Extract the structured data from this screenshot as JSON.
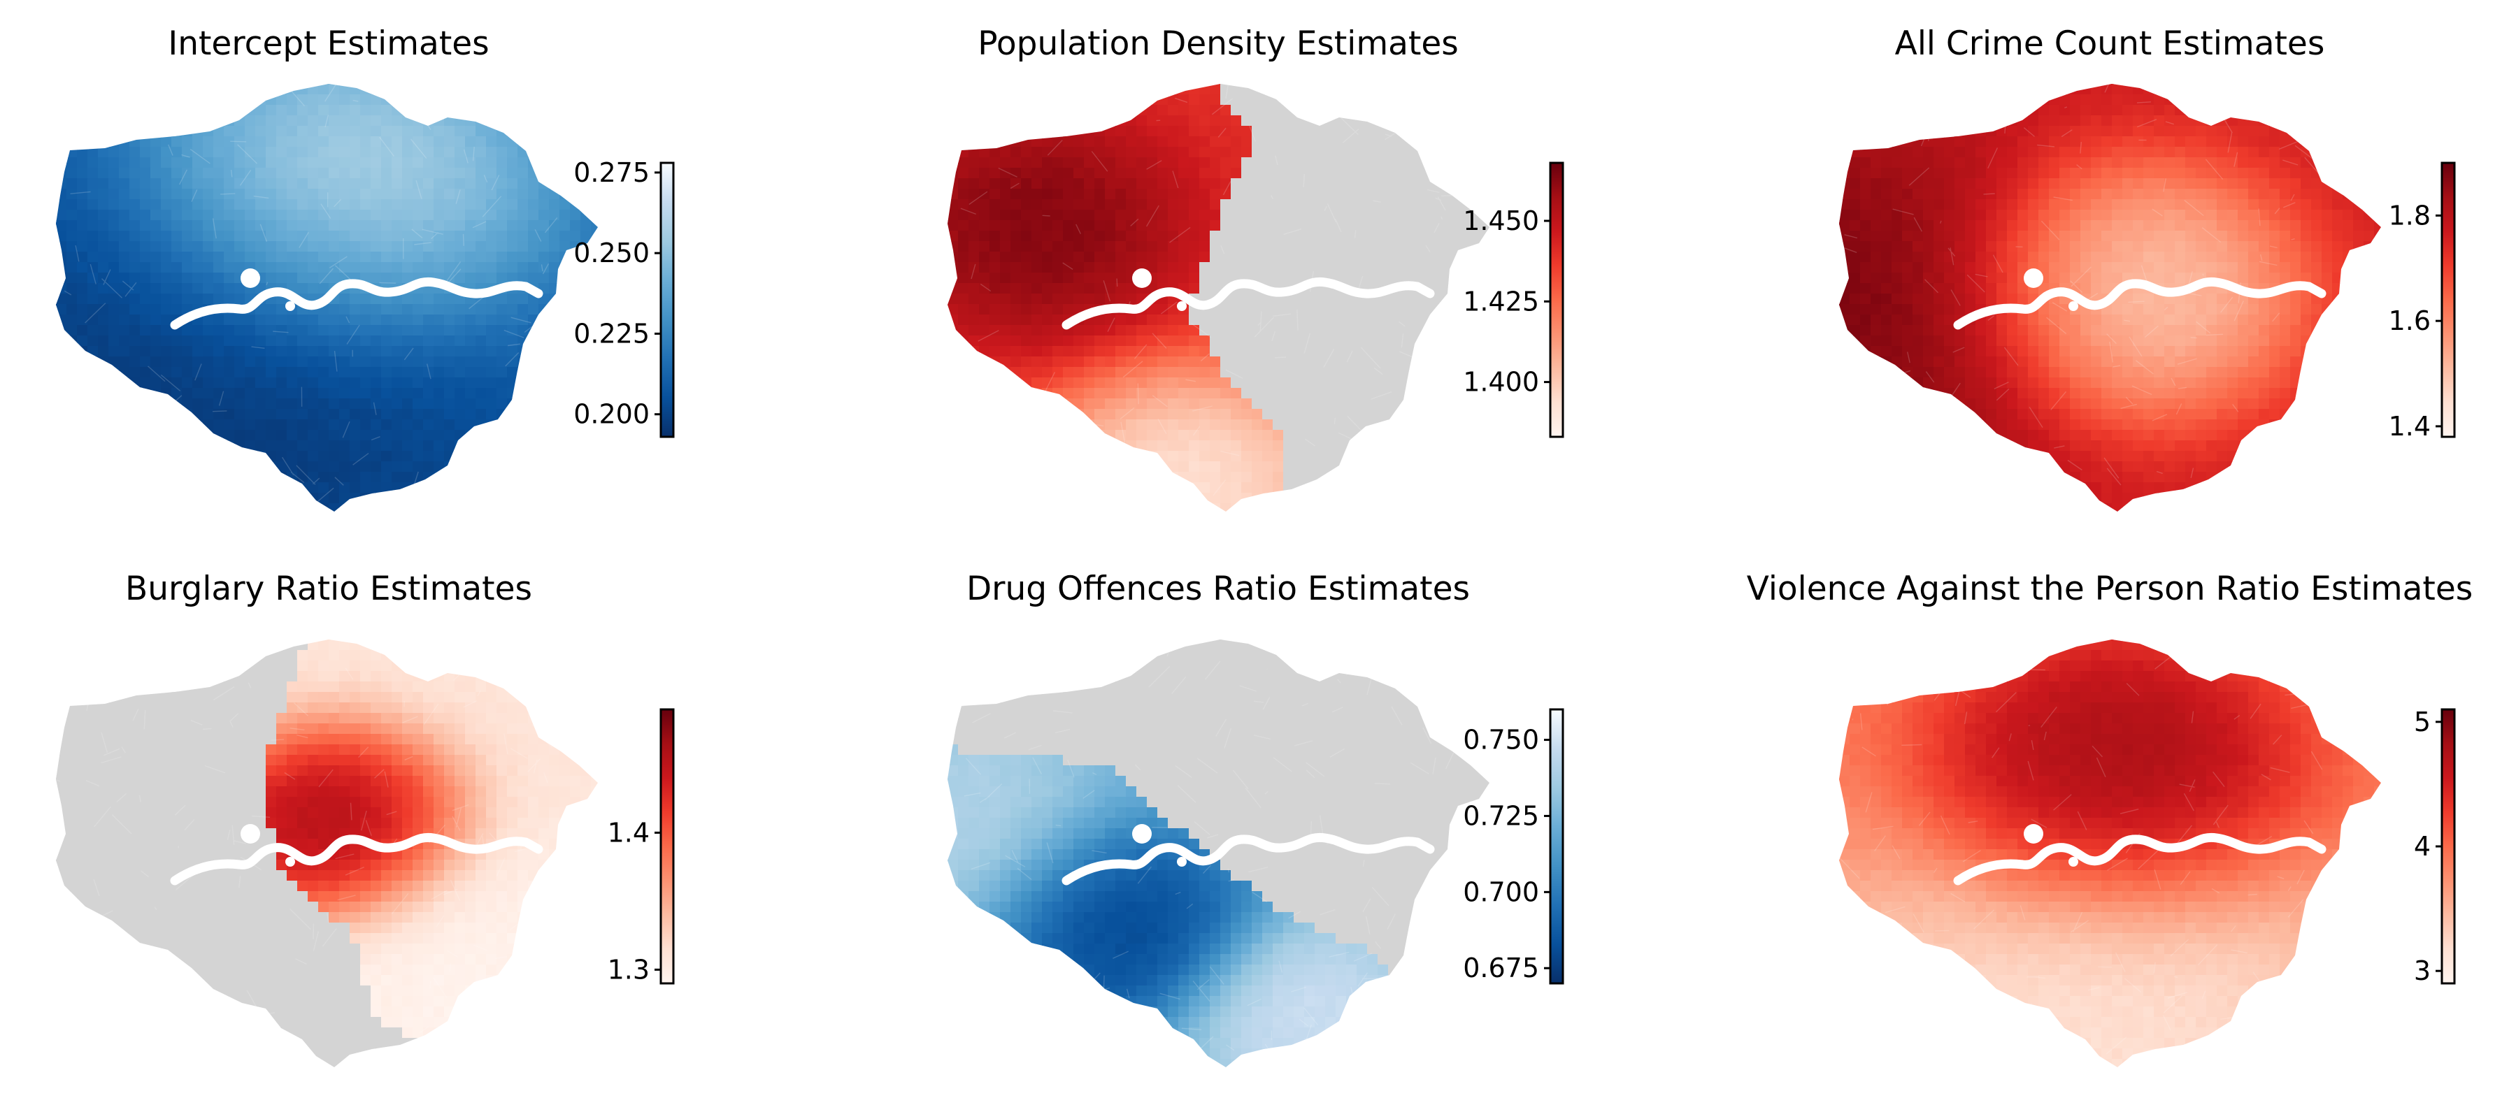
{
  "colormaps": {
    "Blues_r": [
      "#08306b",
      "#08519c",
      "#2171b5",
      "#4292c6",
      "#6baed6",
      "#9ecae1",
      "#c6dbef",
      "#f7fbff"
    ],
    "Reds": [
      "#fff5f0",
      "#fee0d2",
      "#fcbba1",
      "#fc9272",
      "#fb6a4a",
      "#ef3b2c",
      "#cb181d",
      "#a50f15",
      "#67000d"
    ]
  },
  "insignificant_color": "#d4d4d4",
  "panels": [
    {
      "id": "intercept",
      "title": "Intercept Estimates",
      "colormap": "Blues_r",
      "range": [
        0.193,
        0.278
      ],
      "ticks": [
        {
          "value": 0.2,
          "label": "0.200"
        },
        {
          "value": 0.225,
          "label": "0.225"
        },
        {
          "value": 0.25,
          "label": "0.250"
        },
        {
          "value": 0.275,
          "label": "0.275"
        }
      ],
      "mask": "none",
      "hotspots": [
        {
          "u": 0.52,
          "v": 0.28,
          "value": 0.276,
          "spread": 0.2
        },
        {
          "u": 0.3,
          "v": 0.7,
          "value": 0.193,
          "spread": 0.3
        }
      ],
      "base_value": 0.212
    },
    {
      "id": "population_density",
      "title": "Population Density Estimates",
      "colormap": "Reds",
      "range": [
        1.383,
        1.468
      ],
      "ticks": [
        {
          "value": 1.4,
          "label": "1.400"
        },
        {
          "value": 1.425,
          "label": "1.425"
        },
        {
          "value": 1.45,
          "label": "1.450"
        }
      ],
      "mask": "west",
      "hotspots": [
        {
          "u": 0.16,
          "v": 0.34,
          "value": 1.468,
          "spread": 0.14
        },
        {
          "u": 0.44,
          "v": 0.97,
          "value": 1.383,
          "spread": 0.15
        }
      ],
      "base_value": 1.44
    },
    {
      "id": "all_crime_count",
      "title": "All Crime Count Estimates",
      "colormap": "Reds",
      "range": [
        1.38,
        1.9
      ],
      "ticks": [
        {
          "value": 1.4,
          "label": "1.4"
        },
        {
          "value": 1.6,
          "label": "1.6"
        },
        {
          "value": 1.8,
          "label": "1.8"
        }
      ],
      "mask": "none",
      "hotspots": [
        {
          "u": 0.52,
          "v": 0.5,
          "value": 1.42,
          "spread": 0.16
        },
        {
          "u": 0.04,
          "v": 0.55,
          "value": 1.9,
          "spread": 0.24
        }
      ],
      "base_value": 1.76
    },
    {
      "id": "burglary_ratio",
      "title": "Burglary Ratio Estimates",
      "colormap": "Reds",
      "range": [
        1.29,
        1.49
      ],
      "ticks": [
        {
          "value": 1.3,
          "label": "1.3"
        },
        {
          "value": 1.4,
          "label": "1.4"
        }
      ],
      "mask": "east",
      "hotspots": [
        {
          "u": 0.5,
          "v": 0.45,
          "value": 1.49,
          "spread": 0.12
        },
        {
          "u": 0.78,
          "v": 0.85,
          "value": 1.29,
          "spread": 0.2
        }
      ],
      "base_value": 1.31
    },
    {
      "id": "drug_offences_ratio",
      "title": "Drug Offences Ratio Estimates",
      "colormap": "Blues_r",
      "range": [
        0.67,
        0.76
      ],
      "ticks": [
        {
          "value": 0.675,
          "label": "0.675"
        },
        {
          "value": 0.7,
          "label": "0.700"
        },
        {
          "value": 0.725,
          "label": "0.725"
        },
        {
          "value": 0.75,
          "label": "0.750"
        }
      ],
      "mask": "southwest",
      "hotspots": [
        {
          "u": 0.3,
          "v": 0.68,
          "value": 0.67,
          "spread": 0.13
        },
        {
          "u": 0.0,
          "v": 0.45,
          "value": 0.745,
          "spread": 0.16
        },
        {
          "u": 0.66,
          "v": 0.9,
          "value": 0.755,
          "spread": 0.12
        }
      ],
      "base_value": 0.72
    },
    {
      "id": "violence_ratio",
      "title": "Violence Against the Person Ratio Estimates",
      "colormap": "Reds",
      "range": [
        2.9,
        5.1
      ],
      "ticks": [
        {
          "value": 3,
          "label": "3"
        },
        {
          "value": 4,
          "label": "4"
        },
        {
          "value": 5,
          "label": "5"
        }
      ],
      "mask": "none",
      "hotspots": [
        {
          "u": 0.5,
          "v": 0.34,
          "value": 5.1,
          "spread": 0.18
        },
        {
          "u": 0.45,
          "v": 0.95,
          "value": 3.0,
          "spread": 0.3
        }
      ],
      "base_value": 3.9
    }
  ]
}
